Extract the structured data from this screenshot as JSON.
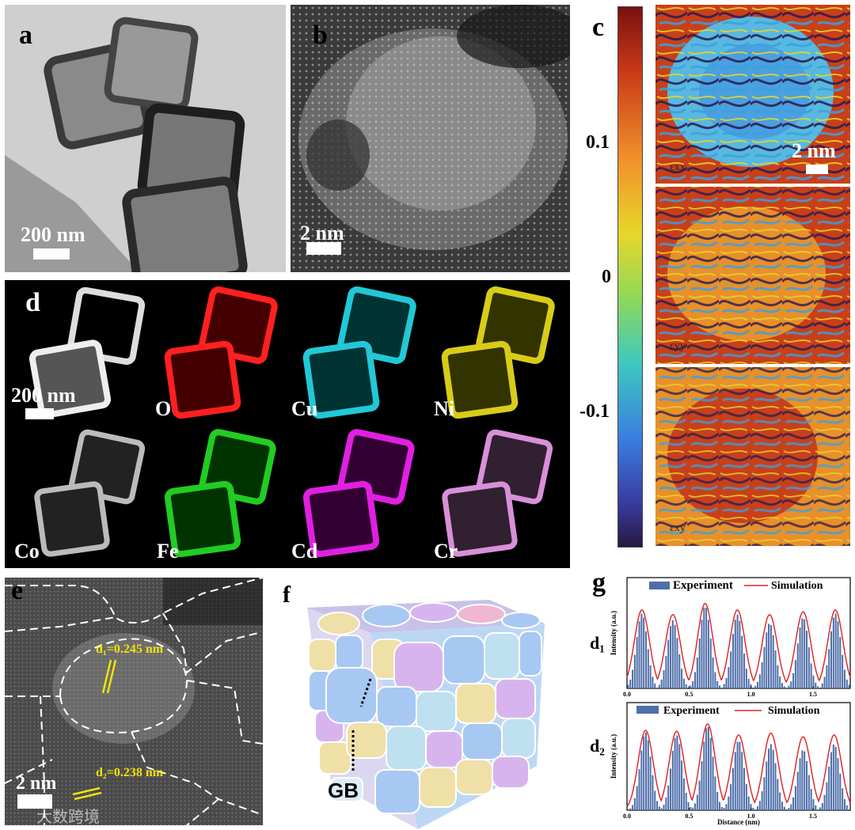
{
  "panels": {
    "a": {
      "letter": "a",
      "scale": "200 nm"
    },
    "b": {
      "letter": "b",
      "scale": "2 nm"
    },
    "c": {
      "letter": "c",
      "scale": "2 nm",
      "colorbar_ticks": [
        "0.1",
        "0",
        "-0.1"
      ],
      "sub_labels": [
        "εxx",
        "εyy",
        "εxy"
      ]
    },
    "d": {
      "letter": "d",
      "scale": "200 nm",
      "elements": [
        "O",
        "Cu",
        "Ni",
        "Co",
        "Fe",
        "Cd",
        "Cr"
      ]
    },
    "e": {
      "letter": "e",
      "scale": "2 nm",
      "d1": "d₁=0.245 nm",
      "d2": "d₂=0.238 nm"
    },
    "f": {
      "letter": "f",
      "gb": "GB"
    },
    "g": {
      "letter": "g"
    }
  },
  "colors": {
    "O": "#ff2020",
    "Cu": "#22c8d6",
    "Ni": "#d8cc18",
    "Co": "#d8d8d8",
    "Fe": "#22cc22",
    "Cd": "#e020e0",
    "Cr": "#d890d8",
    "bar": "#4f6faa",
    "sim": "#e02020",
    "ann": "#f2e20a"
  },
  "watermark": "大数跨境",
  "chart_data": [
    {
      "type": "bar",
      "ylabel_text": "d₁",
      "ylabel": "Intensity (a.u.)",
      "xlabel": "",
      "xlim": [
        0,
        1.8
      ],
      "x_ticks": [
        "0.0",
        "0.5",
        "1.0",
        "1.5"
      ],
      "series": [
        {
          "name": "Experiment",
          "peaks_x": [
            0.12,
            0.37,
            0.63,
            0.89,
            1.15,
            1.42,
            1.68
          ],
          "peaks_y": [
            0.8,
            0.73,
            0.88,
            0.79,
            0.7,
            0.76,
            0.8
          ]
        },
        {
          "name": "Simulation",
          "peaks_x": [
            0.12,
            0.37,
            0.63,
            0.89,
            1.15,
            1.42,
            1.68
          ],
          "peaks_y": [
            0.84,
            0.79,
            0.91,
            0.84,
            0.79,
            0.82,
            0.84
          ]
        }
      ]
    },
    {
      "type": "bar",
      "ylabel_text": "d₂",
      "ylabel": "Intensity (a.u.)",
      "xlabel": "Distance (nm)",
      "xlim": [
        0,
        1.8
      ],
      "x_ticks": [
        "0.0",
        "0.5",
        "1.0",
        "1.5"
      ],
      "series": [
        {
          "name": "Experiment",
          "peaks_x": [
            0.15,
            0.4,
            0.65,
            0.9,
            1.16,
            1.42,
            1.67
          ],
          "peaks_y": [
            0.85,
            0.82,
            0.92,
            0.76,
            0.72,
            0.66,
            0.72
          ]
        },
        {
          "name": "Simulation",
          "peaks_x": [
            0.15,
            0.4,
            0.65,
            0.9,
            1.16,
            1.42,
            1.67
          ],
          "peaks_y": [
            0.87,
            0.86,
            0.94,
            0.82,
            0.84,
            0.8,
            0.82
          ]
        }
      ]
    }
  ]
}
